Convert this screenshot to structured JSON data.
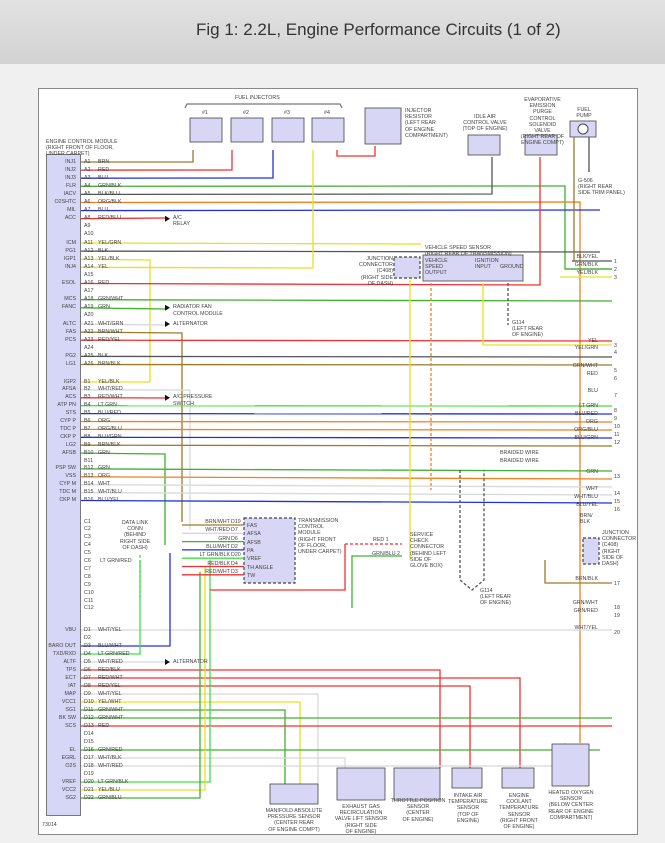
{
  "title": "Fig 1: 2.2L, Engine Performance Circuits (1 of 2)",
  "ecm_label": "ENGINE CONTROL MODULE\n(RIGHT FRONT OF FLOOR,\nUNDER CARPET)",
  "pins": [
    {
      "pin": "A1",
      "terminal": "INJ1",
      "wire": "BRN"
    },
    {
      "pin": "A2",
      "terminal": "INJ2",
      "wire": "RED"
    },
    {
      "pin": "A3",
      "terminal": "INJ3",
      "wire": "BLU"
    },
    {
      "pin": "A4",
      "terminal": "FLR",
      "wire": "GRN/BLK"
    },
    {
      "pin": "A5",
      "terminal": "IACV",
      "wire": "BLK/BLU"
    },
    {
      "pin": "A6",
      "terminal": "O2SHTC",
      "wire": "ORG/BLK"
    },
    {
      "pin": "A7",
      "terminal": "MIL",
      "wire": "BLU"
    },
    {
      "pin": "A8",
      "terminal": "ACC",
      "wire": "RED/BLU"
    },
    {
      "pin": "A9",
      "terminal": "",
      "wire": ""
    },
    {
      "pin": "A10",
      "terminal": "",
      "wire": ""
    },
    {
      "pin": "A11",
      "terminal": "ICM",
      "wire": "YEL/GRN"
    },
    {
      "pin": "A12",
      "terminal": "PG1",
      "wire": "BLK"
    },
    {
      "pin": "A13",
      "terminal": "IGP1",
      "wire": "YEL/BLK"
    },
    {
      "pin": "A14",
      "terminal": "INJ4",
      "wire": "YEL"
    },
    {
      "pin": "A15",
      "terminal": "",
      "wire": ""
    },
    {
      "pin": "A16",
      "terminal": "ESOL",
      "wire": "RED"
    },
    {
      "pin": "A17",
      "terminal": "",
      "wire": ""
    },
    {
      "pin": "A18",
      "terminal": "MCS",
      "wire": "GRN/WHT"
    },
    {
      "pin": "A19",
      "terminal": "FANC",
      "wire": "GRN"
    },
    {
      "pin": "A20",
      "terminal": "",
      "wire": ""
    },
    {
      "pin": "A21",
      "terminal": "ALTC",
      "wire": "WHT/GRN"
    },
    {
      "pin": "A22",
      "terminal": "FAS",
      "wire": "BRN/WHT"
    },
    {
      "pin": "A23",
      "terminal": "PCS",
      "wire": "RED/YEL"
    },
    {
      "pin": "A24",
      "terminal": "",
      "wire": ""
    },
    {
      "pin": "A25",
      "terminal": "PG2",
      "wire": "BLK"
    },
    {
      "pin": "A26",
      "terminal": "LG1",
      "wire": "BRN/BLK"
    },
    {
      "pin": "B1",
      "terminal": "IGP2",
      "wire": "YEL/BLK"
    },
    {
      "pin": "B2",
      "terminal": "AFSA",
      "wire": "WHT/RED"
    },
    {
      "pin": "B3",
      "terminal": "ACS",
      "wire": "RED/WHT"
    },
    {
      "pin": "B4",
      "terminal": "ATP PN",
      "wire": "LT GRN"
    },
    {
      "pin": "B5",
      "terminal": "STS",
      "wire": "BLU/RED"
    },
    {
      "pin": "B6",
      "terminal": "CYP P",
      "wire": "ORG"
    },
    {
      "pin": "B7",
      "terminal": "TDC P",
      "wire": "ORG/BLU"
    },
    {
      "pin": "B8",
      "terminal": "CKP P",
      "wire": "BLU/GRN"
    },
    {
      "pin": "B9",
      "terminal": "LG2",
      "wire": "BRN/BLK"
    },
    {
      "pin": "B10",
      "terminal": "AFSB",
      "wire": "GRN"
    },
    {
      "pin": "B11",
      "terminal": "",
      "wire": ""
    },
    {
      "pin": "B12",
      "terminal": "PSP SW",
      "wire": "GRN"
    },
    {
      "pin": "B13",
      "terminal": "VSS",
      "wire": "ORG"
    },
    {
      "pin": "B14",
      "terminal": "CYP M",
      "wire": "WHT"
    },
    {
      "pin": "B15",
      "terminal": "TDC M",
      "wire": "WHT/BLU"
    },
    {
      "pin": "B16",
      "terminal": "CKP M",
      "wire": "BLU/YEL"
    },
    {
      "pin": "C1",
      "terminal": "",
      "wire": ""
    },
    {
      "pin": "C2",
      "terminal": "",
      "wire": ""
    },
    {
      "pin": "C3",
      "terminal": "",
      "wire": ""
    },
    {
      "pin": "C4",
      "terminal": "",
      "wire": ""
    },
    {
      "pin": "C5",
      "terminal": "",
      "wire": ""
    },
    {
      "pin": "C6",
      "terminal": "",
      "wire": ""
    },
    {
      "pin": "C7",
      "terminal": "",
      "wire": ""
    },
    {
      "pin": "C8",
      "terminal": "",
      "wire": ""
    },
    {
      "pin": "C9",
      "terminal": "",
      "wire": ""
    },
    {
      "pin": "C10",
      "terminal": "",
      "wire": ""
    },
    {
      "pin": "C11",
      "terminal": "",
      "wire": ""
    },
    {
      "pin": "C12",
      "terminal": "",
      "wire": ""
    },
    {
      "pin": "D1",
      "terminal": "VBU",
      "wire": "WHT/YEL"
    },
    {
      "pin": "D2",
      "terminal": "",
      "wire": ""
    },
    {
      "pin": "D3",
      "terminal": "BARO OUT",
      "wire": "BLU/WHT"
    },
    {
      "pin": "D4",
      "terminal": "TXD/RXD",
      "wire": "LT GRN/RED"
    },
    {
      "pin": "D5",
      "terminal": "ALTF",
      "wire": "WHT/RED"
    },
    {
      "pin": "D6",
      "terminal": "TPS",
      "wire": "RED/BLK"
    },
    {
      "pin": "D7",
      "terminal": "ECT",
      "wire": "RED/WHT"
    },
    {
      "pin": "D8",
      "terminal": "IAT",
      "wire": "RED/YEL"
    },
    {
      "pin": "D9",
      "terminal": "MAP",
      "wire": "WHT/YEL"
    },
    {
      "pin": "D10",
      "terminal": "VCC1",
      "wire": "YEL/WHT"
    },
    {
      "pin": "D11",
      "terminal": "SG1",
      "wire": "GRN/WHT"
    },
    {
      "pin": "D12",
      "terminal": "BK SW",
      "wire": "GRN/WHT"
    },
    {
      "pin": "D13",
      "terminal": "SCS",
      "wire": "RED"
    },
    {
      "pin": "D14",
      "terminal": "",
      "wire": ""
    },
    {
      "pin": "D15",
      "terminal": "",
      "wire": ""
    },
    {
      "pin": "D16",
      "terminal": "EL",
      "wire": "GRN/RED"
    },
    {
      "pin": "D17",
      "terminal": "EGRL",
      "wire": "WHT/BLK"
    },
    {
      "pin": "D18",
      "terminal": "O2S",
      "wire": "WHT/RED"
    },
    {
      "pin": "D19",
      "terminal": "",
      "wire": ""
    },
    {
      "pin": "D20",
      "terminal": "VREF",
      "wire": "LT GRN/BLK"
    },
    {
      "pin": "D21",
      "terminal": "VCC2",
      "wire": "YEL/BLU"
    },
    {
      "pin": "D22",
      "terminal": "SG2",
      "wire": "GRN/BLU"
    }
  ],
  "right_connectors": [
    {
      "num": "1",
      "wire": "BLK/YEL"
    },
    {
      "num": "2",
      "wire": "GRN/BLK"
    },
    {
      "num": "3",
      "wire": "YEL/BLK"
    },
    {
      "num": "3",
      "wire": "YEL"
    },
    {
      "num": "4",
      "wire": "YEL/GRN"
    },
    {
      "num": "5",
      "wire": "GRN/WHT"
    },
    {
      "num": "6",
      "wire": "RED"
    },
    {
      "num": "7",
      "wire": "BLU"
    },
    {
      "num": "8",
      "wire": "LT GRN"
    },
    {
      "num": "9",
      "wire": "BLU/RED"
    },
    {
      "num": "10",
      "wire": "ORG"
    },
    {
      "num": "11",
      "wire": "ORG/BLU"
    },
    {
      "num": "12",
      "wire": "BLU/GRN"
    },
    {
      "num": "13",
      "wire": "GRN"
    },
    {
      "num": "14",
      "wire": "WHT"
    },
    {
      "num": "15",
      "wire": "WHT/BLU"
    },
    {
      "num": "16",
      "wire": "BLU/YEL"
    },
    {
      "num": "17",
      "wire": "BRN/BLK"
    },
    {
      "num": "18",
      "wire": "GRN/WHT"
    },
    {
      "num": "19",
      "wire": "GRN/RED"
    },
    {
      "num": "20",
      "wire": "WHT/YEL"
    }
  ],
  "arrows": {
    "ac_relay": "A/C\nRELAY",
    "radiator_fan": "RADIATOR FAN\nCONTROL MODULE",
    "alternator_1": "ALTERNATOR",
    "ac_pressure": "A/C PRESSURE\nSWITCH",
    "alternator_2": "ALTERNATOR"
  },
  "components": {
    "fuel_injectors": "FUEL INJECTORS",
    "injector_numbers": [
      "#1",
      "#2",
      "#3",
      "#4"
    ],
    "injector_resistor": "INJECTOR\nRESISTOR\n(LEFT REAR\nOF ENGINE\nCOMPARTMENT)",
    "iac_valve": "IDLE AIR\nCONTROL VALVE\n(TOP OF ENGINE)",
    "evap_valve": "EVAPORATIVE\nEMISSION\nPURGE CONTROL\nSOLENOID VALVE\n(RIGHT REAR OF\nENGINE COMPT)",
    "fuel_pump": "FUEL\nPUMP",
    "fuel_pump_ground": "G-506\n(RIGHT REAR\nSIDE TRIM PANEL)",
    "vss_title": "VEHICLE SPEED SENSOR\n(RIGHT REAR OF TRANSMISSION)",
    "vss_output": "VEHICLE\nSPEED\nOUTPUT",
    "vss_ignition": "IGNITION\nINPUT",
    "vss_ground": "GROUND",
    "junction_c408_top": "JUNCTION\nCONNECTOR (C408)\n(RIGHT SIDE\nOF DASH)",
    "g114_top": "G114\n(LEFT REAR\nOF ENGINE)",
    "braided_wire_1": "BRAIDED WIRE",
    "braided_wire_2": "BRAIDED WIRE",
    "data_link": "DATA LINK\nCONN\n(BEHIND\nRIGHT SIDE\nOF DASH)",
    "data_link_wire": "LT GRN/RED",
    "tcm": "TRANSMISSION\nCONTROL\nMODULE\n(RIGHT FRONT\nOF FLOOR,\nUNDER CARPET)",
    "tcm_pins": [
      "FAS",
      "AFSA",
      "AFSB",
      "PA",
      "VREF",
      "TH ANGLE",
      "TW"
    ],
    "tcm_wires": [
      {
        "wire": "BRN/WHT",
        "pin": "D19"
      },
      {
        "wire": "WHT/RED",
        "pin": "D7"
      },
      {
        "wire": "GRN",
        "pin": "D6"
      },
      {
        "wire": "BLU/WHT",
        "pin": "D2"
      },
      {
        "wire": "LT GRN/BLK",
        "pin": "D20"
      },
      {
        "wire": "RED/BLK",
        "pin": "D4"
      },
      {
        "wire": "RED/WHT",
        "pin": "D3"
      }
    ],
    "service_check": "SERVICE\nCHECK\nCONNECTOR\n(BEHIND LEFT\nSIDE OF\nGLOVE BOX)",
    "service_wire_1": "RED  1",
    "service_wire_2": "GRN/BLU  2",
    "g114_bottom": "G114\n(LEFT REAR\nOF ENGINE)",
    "junction_c408_right": "JUNCTION\nCONNECTOR\n(C408)\n(RIGHT\nSIDE OF\nDASH)",
    "junction_right_wire": "BRN/\nBLK",
    "map_sensor": "MANIFOLD ABSOLUTE\nPRESSURE SENSOR\n(CENTER REAR\nOF ENGINE COMPT)",
    "egr_sensor": "EXHAUST GAS\nRECIRCULATION\nVALVE LIFT SENSOR\n(RIGHT SIDE\nOF ENGINE)",
    "tps_sensor": "THROTTLE POSITION\nSENSOR\n(CENTER\nOF ENGINE)",
    "iat_sensor": "INTAKE AIR\nTEMPERATURE\nSENSOR\n(TOP OF\nENGINE)",
    "ect_sensor": "ENGINE COOLANT\nTEMPERATURE\nSENSOR\n(RIGHT FRONT\nOF ENGINE)",
    "ho2s_sensor": "HEATED OXYGEN\nSENSOR\n(BELOW CENTER\nREAR OF ENGINE\nCOMPARTMENT)"
  },
  "wire_colors": {
    "BRN": "#9c7a2a",
    "RED": "#f03030",
    "BLU": "#2030e0",
    "GRN": "#40b030",
    "BLK": "#555555",
    "ORG": "#f08020",
    "YEL": "#e8e020",
    "WHT": "#d8d8d8",
    "LT GRN": "#40e040",
    "PNK": "#f0a0a0"
  },
  "footer_code": "73014"
}
